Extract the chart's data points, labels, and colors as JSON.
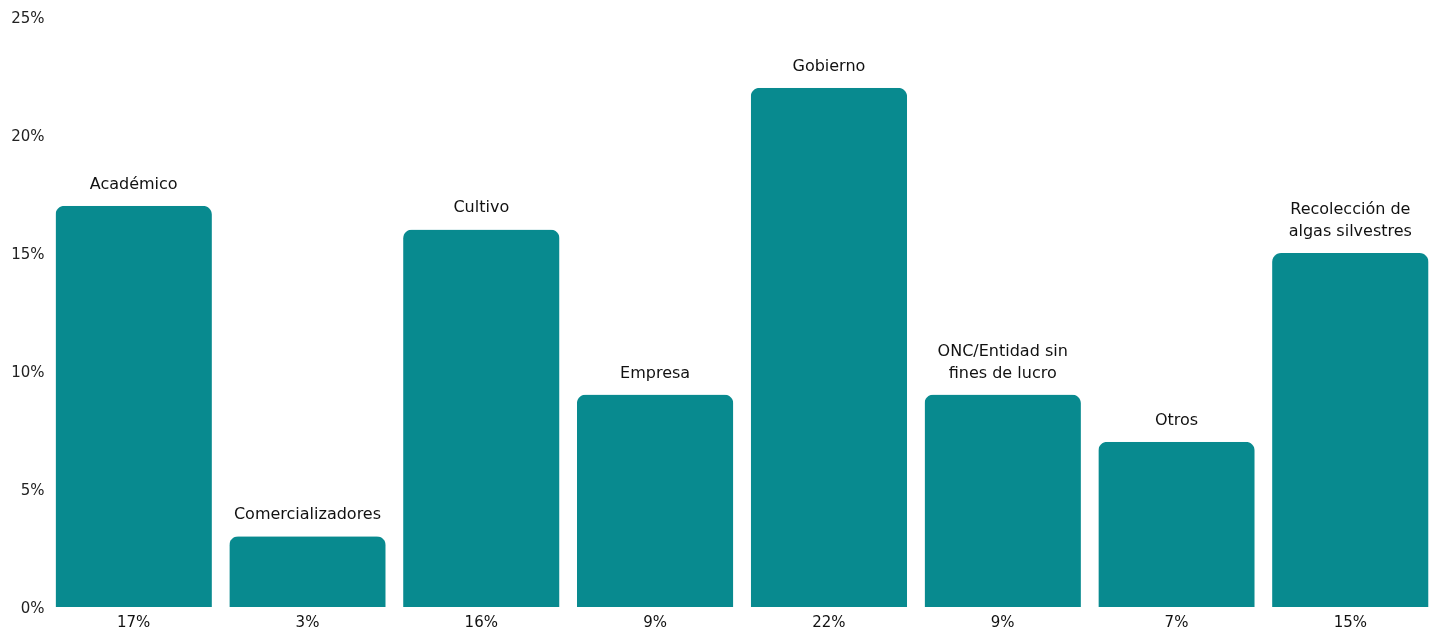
{
  "chart_data": {
    "type": "bar",
    "categories": [
      "Académico",
      "Comercializadores",
      "Cultivo",
      "Empresa",
      "Gobierno",
      "ONC/Entidad sin fines de lucro",
      "Otros",
      "Recolección de algas silvestres"
    ],
    "values": [
      17,
      3,
      16,
      9,
      22,
      9,
      7,
      15
    ],
    "value_labels": [
      "17%",
      "3%",
      "16%",
      "9%",
      "22%",
      "9%",
      "7%",
      "15%"
    ],
    "color": "#088a8f",
    "ylim": [
      0,
      25
    ],
    "yticks": [
      {
        "value": 0,
        "label": "0%"
      },
      {
        "value": 5,
        "label": "5%"
      },
      {
        "value": 10,
        "label": "10%"
      },
      {
        "value": 15,
        "label": "15%"
      },
      {
        "value": 20,
        "label": "20%"
      },
      {
        "value": 25,
        "label": "25%"
      }
    ],
    "tick_labels": "y"
  }
}
